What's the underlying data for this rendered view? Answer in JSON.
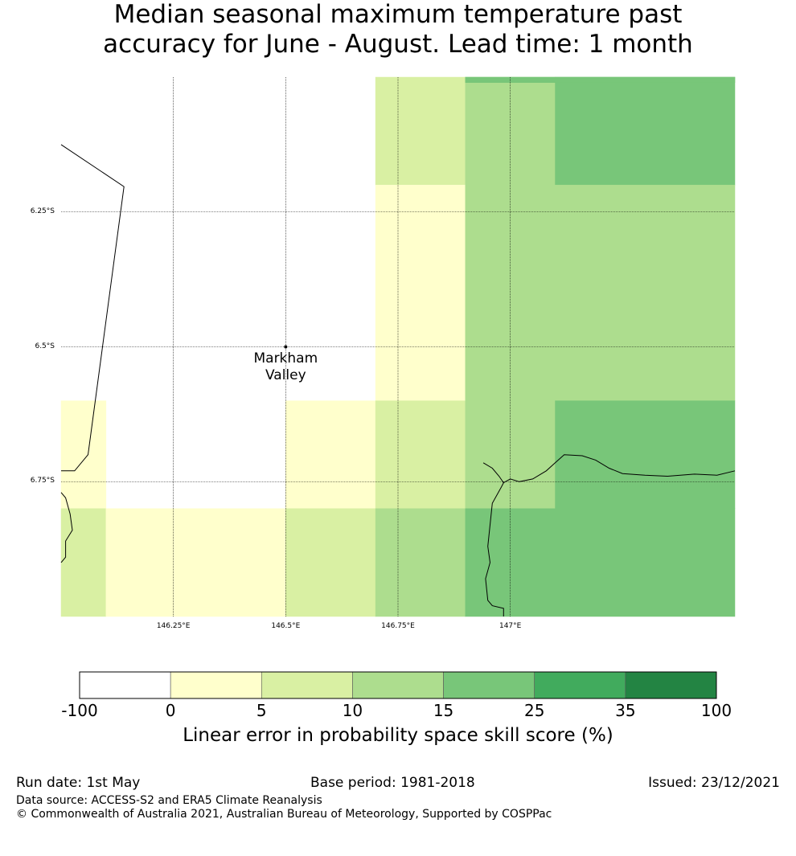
{
  "title": {
    "line1": "Median seasonal maximum temperature past",
    "line2": "accuracy for June - August. Lead time: 1 month"
  },
  "map": {
    "lon_range": [
      146.0,
      147.5
    ],
    "lat_range": [
      -6.0,
      -7.0
    ],
    "grid_cell_deg": 0.2,
    "lat_labels": [
      {
        "lat": -6.25,
        "label": "6.25°S"
      },
      {
        "lat": -6.5,
        "label": "6.5°S"
      },
      {
        "lat": -6.75,
        "label": "6.75°S"
      }
    ],
    "lon_labels": [
      {
        "lon": 146.25,
        "label": "146.25°E"
      },
      {
        "lon": 146.5,
        "label": "146.5°E"
      },
      {
        "lon": 146.75,
        "label": "146.75°E"
      },
      {
        "lon": 147.0,
        "label": "147°E"
      }
    ],
    "marker": {
      "lon": 146.5,
      "lat": -6.5,
      "label_line1": "Markham",
      "label_line2": "Valley"
    },
    "colors": [
      "#ffffff",
      "#ffffcc",
      "#d9f0a3",
      "#addd8e",
      "#78c679",
      "#41ab5d",
      "#238443"
    ],
    "cells": [
      {
        "x0": 146.7,
        "x1": 146.9,
        "y0": -6.0,
        "y1": -6.2,
        "bin": 2
      },
      {
        "x0": 146.9,
        "x1": 147.1,
        "y0": -6.0,
        "y1": -6.2,
        "bin": 3
      },
      {
        "x0": 147.1,
        "x1": 147.5,
        "y0": -6.0,
        "y1": -6.2,
        "bin": 4
      },
      {
        "x0": 146.9,
        "x1": 147.5,
        "y0": -6.0,
        "y1": -6.01,
        "bin": 4
      },
      {
        "x0": 146.7,
        "x1": 146.9,
        "y0": -6.2,
        "y1": -6.6,
        "bin": 1
      },
      {
        "x0": 146.9,
        "x1": 147.5,
        "y0": -6.2,
        "y1": -6.6,
        "bin": 3
      },
      {
        "x0": 146.0,
        "x1": 146.1,
        "y0": -6.6,
        "y1": -6.8,
        "bin": 1
      },
      {
        "x0": 146.5,
        "x1": 146.7,
        "y0": -6.6,
        "y1": -6.8,
        "bin": 1
      },
      {
        "x0": 146.7,
        "x1": 146.9,
        "y0": -6.6,
        "y1": -6.8,
        "bin": 2
      },
      {
        "x0": 146.9,
        "x1": 147.1,
        "y0": -6.6,
        "y1": -6.8,
        "bin": 3
      },
      {
        "x0": 147.1,
        "x1": 147.5,
        "y0": -6.6,
        "y1": -6.8,
        "bin": 4
      },
      {
        "x0": 146.0,
        "x1": 146.1,
        "y0": -6.8,
        "y1": -7.0,
        "bin": 2
      },
      {
        "x0": 146.1,
        "x1": 146.5,
        "y0": -6.8,
        "y1": -7.0,
        "bin": 1
      },
      {
        "x0": 146.5,
        "x1": 146.7,
        "y0": -6.8,
        "y1": -7.0,
        "bin": 2
      },
      {
        "x0": 146.7,
        "x1": 146.9,
        "y0": -6.8,
        "y1": -7.0,
        "bin": 3
      },
      {
        "x0": 146.9,
        "x1": 147.5,
        "y0": -6.8,
        "y1": -7.0,
        "bin": 4
      }
    ],
    "borders": [
      [
        [
          146.0,
          -6.125
        ],
        [
          146.14,
          -6.203
        ],
        [
          146.06,
          -6.7
        ],
        [
          146.03,
          -6.73
        ],
        [
          146.0,
          -6.73
        ]
      ],
      [
        [
          146.0,
          -6.77
        ],
        [
          146.01,
          -6.78
        ],
        [
          146.02,
          -6.81
        ],
        [
          146.025,
          -6.84
        ],
        [
          146.01,
          -6.86
        ],
        [
          146.01,
          -6.89
        ],
        [
          146.0,
          -6.9
        ]
      ],
      [
        [
          146.94,
          -6.715
        ],
        [
          146.96,
          -6.725
        ],
        [
          146.975,
          -6.74
        ],
        [
          146.985,
          -6.752
        ],
        [
          146.98,
          -6.76
        ],
        [
          146.96,
          -6.79
        ],
        [
          146.955,
          -6.83
        ],
        [
          146.95,
          -6.87
        ],
        [
          146.955,
          -6.9
        ],
        [
          146.945,
          -6.93
        ],
        [
          146.95,
          -6.97
        ],
        [
          146.96,
          -6.98
        ],
        [
          146.985,
          -6.985
        ],
        [
          146.985,
          -7.0
        ]
      ],
      [
        [
          146.985,
          -6.752
        ],
        [
          147.0,
          -6.745
        ],
        [
          147.02,
          -6.75
        ],
        [
          147.05,
          -6.745
        ],
        [
          147.08,
          -6.73
        ],
        [
          147.1,
          -6.715
        ],
        [
          147.12,
          -6.7
        ],
        [
          147.16,
          -6.702
        ],
        [
          147.19,
          -6.71
        ],
        [
          147.22,
          -6.725
        ],
        [
          147.25,
          -6.735
        ],
        [
          147.3,
          -6.738
        ],
        [
          147.35,
          -6.74
        ],
        [
          147.41,
          -6.736
        ],
        [
          147.46,
          -6.738
        ],
        [
          147.5,
          -6.73
        ]
      ]
    ]
  },
  "legend": {
    "bounds": [
      "-100",
      "0",
      "5",
      "10",
      "15",
      "25",
      "35",
      "100"
    ],
    "colors": [
      "#ffffff",
      "#ffffcc",
      "#d9f0a3",
      "#addd8e",
      "#78c679",
      "#41ab5d",
      "#238443"
    ],
    "title": "Linear error in probability space skill score (%)"
  },
  "footer": {
    "run_date": "Run date: 1st May",
    "base_period": "Base period: 1981-2018",
    "issued": "Issued: 23/12/2021",
    "data_source": "Data source: ACCESS-S2 and ERA5 Climate Reanalysis",
    "copyright": "© Commonwealth of Australia 2021, Australian Bureau of Meteorology, Supported by COSPPac"
  }
}
